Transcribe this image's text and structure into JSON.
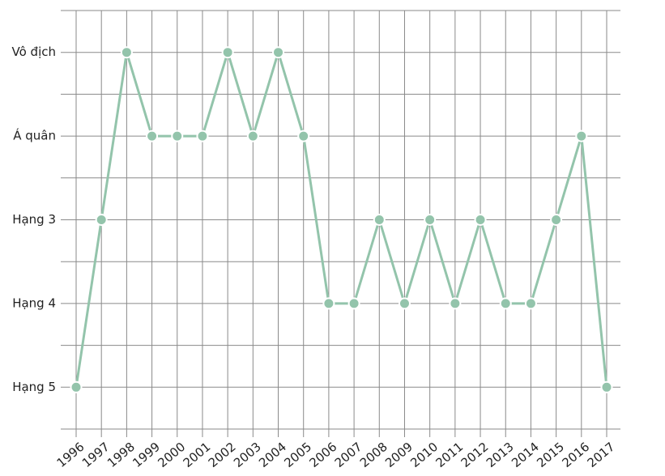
{
  "chart_data": {
    "type": "line",
    "categories": [
      "1996",
      "1997",
      "1998",
      "1999",
      "2000",
      "2001",
      "2002",
      "2003",
      "2004",
      "2005",
      "2006",
      "2007",
      "2008",
      "2009",
      "2010",
      "2011",
      "2012",
      "2013",
      "2014",
      "2015",
      "2016",
      "2017"
    ],
    "values": [
      5,
      3,
      1,
      2,
      2,
      2,
      1,
      2,
      1,
      2,
      4,
      4,
      3,
      4,
      3,
      4,
      3,
      4,
      4,
      3,
      2,
      5
    ],
    "color": "#93c4ab",
    "ylim": [
      5.5,
      0.5
    ],
    "yticks": [
      {
        "value": 1,
        "label": "Vô địch"
      },
      {
        "value": 2,
        "label": "Á quân"
      },
      {
        "value": 3,
        "label": "Hạng 3"
      },
      {
        "value": 4,
        "label": "Hạng 4"
      },
      {
        "value": 5,
        "label": "Hạng 5"
      }
    ],
    "minor_yticks": [
      0.5,
      1.5,
      2.5,
      3.5,
      4.5,
      5.5
    ],
    "grid": true
  }
}
